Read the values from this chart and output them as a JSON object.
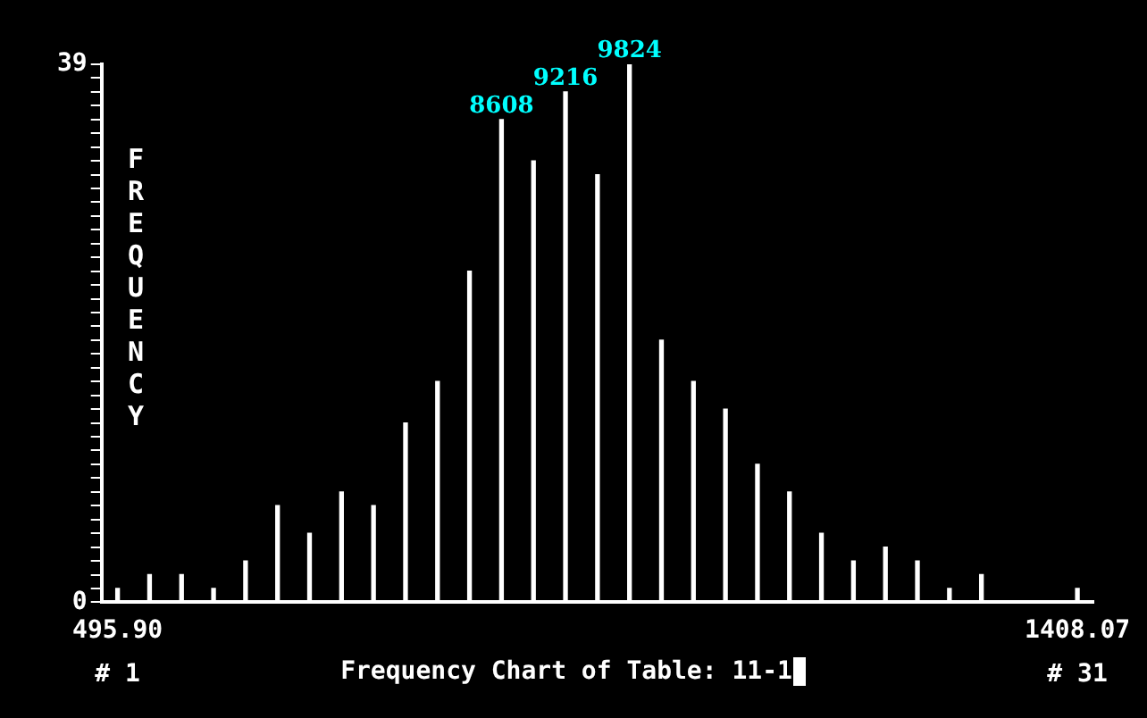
{
  "chart_data": {
    "type": "bar",
    "title": "Frequency Chart of Table: 11-1",
    "ylabel": "FREQUENCY",
    "categories": [
      "495.90",
      null,
      null,
      null,
      null,
      null,
      null,
      null,
      null,
      null,
      null,
      null,
      null,
      null,
      null,
      null,
      null,
      null,
      null,
      null,
      null,
      null,
      null,
      null,
      null,
      null,
      null,
      null,
      null,
      null,
      "1408.07"
    ],
    "values": [
      1,
      2,
      2,
      1,
      3,
      7,
      5,
      8,
      7,
      13,
      16,
      24,
      35,
      32,
      37,
      31,
      39,
      19,
      16,
      14,
      10,
      8,
      5,
      3,
      4,
      3,
      1,
      2,
      0,
      0,
      1
    ],
    "color": "#ffffff",
    "ylim": [
      0,
      39
    ],
    "yticks": [
      0,
      {
        "value": 1,
        "label": null
      },
      {
        "value": 2,
        "label": null
      },
      {
        "value": 3,
        "label": null
      },
      {
        "value": 4,
        "label": null
      },
      {
        "value": 5,
        "label": null
      },
      {
        "value": 6,
        "label": null
      },
      {
        "value": 7,
        "label": null
      },
      {
        "value": 8,
        "label": null
      },
      {
        "value": 9,
        "label": null
      },
      {
        "value": 10,
        "label": null
      },
      {
        "value": 11,
        "label": null
      },
      {
        "value": 12,
        "label": null
      },
      {
        "value": 13,
        "label": null
      },
      {
        "value": 14,
        "label": null
      },
      {
        "value": 15,
        "label": null
      },
      {
        "value": 16,
        "label": null
      },
      {
        "value": 17,
        "label": null
      },
      {
        "value": 18,
        "label": null
      },
      {
        "value": 19,
        "label": null
      },
      {
        "value": 20,
        "label": null
      },
      {
        "value": 21,
        "label": null
      },
      {
        "value": 22,
        "label": null
      },
      {
        "value": 23,
        "label": null
      },
      {
        "value": 24,
        "label": null
      },
      {
        "value": 25,
        "label": null
      },
      {
        "value": 26,
        "label": null
      },
      {
        "value": 27,
        "label": null
      },
      {
        "value": 28,
        "label": null
      },
      {
        "value": 29,
        "label": null
      },
      {
        "value": 30,
        "label": null
      },
      {
        "value": 31,
        "label": null
      },
      {
        "value": 32,
        "label": null
      },
      {
        "value": 33,
        "label": null
      },
      {
        "value": 34,
        "label": null
      },
      {
        "value": 35,
        "label": null
      },
      {
        "value": 36,
        "label": null
      },
      {
        "value": 37,
        "label": null
      },
      {
        "value": 38,
        "label": null
      },
      39
    ],
    "annotations": [
      "8608",
      "9216",
      "9824",
      "# 1",
      "# 31"
    ]
  }
}
